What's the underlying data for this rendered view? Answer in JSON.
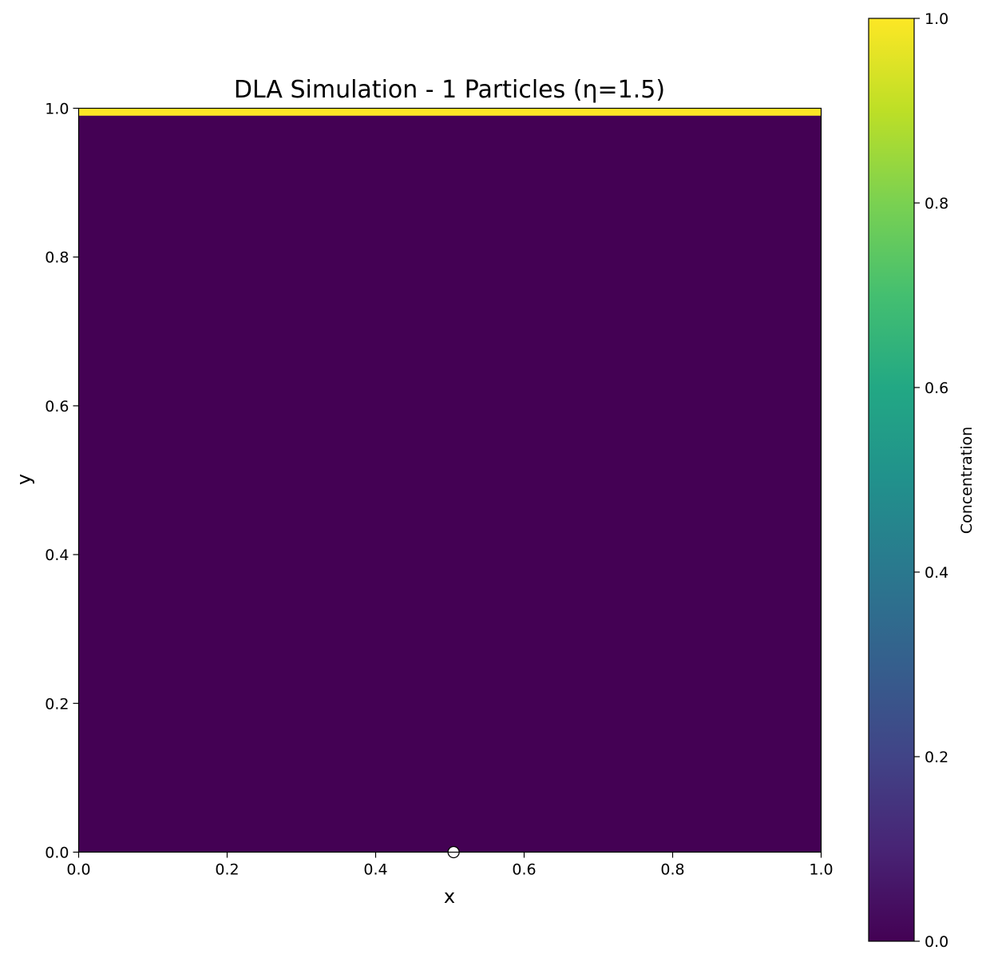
{
  "chart_data": {
    "type": "heatmap",
    "title": "DLA Simulation - 1 Particles (η=1.5)",
    "xlabel": "x",
    "ylabel": "y",
    "xlim": [
      0.0,
      1.0
    ],
    "ylim": [
      0.0,
      1.0
    ],
    "xticks": [
      "0.0",
      "0.2",
      "0.4",
      "0.6",
      "0.8",
      "1.0"
    ],
    "yticks": [
      "0.0",
      "0.2",
      "0.4",
      "0.6",
      "0.8",
      "1.0"
    ],
    "grid": false,
    "field": {
      "background_value": 0.0,
      "boundary": {
        "value": 1.0,
        "y_from": 0.99,
        "y_to": 1.0
      }
    },
    "particles": [
      {
        "x": 0.505,
        "y": 0.0,
        "color": "#ffffff"
      }
    ],
    "colorbar": {
      "label": "Concentration",
      "range": [
        0.0,
        1.0
      ],
      "ticks": [
        "0.0",
        "0.2",
        "0.4",
        "0.6",
        "0.8",
        "1.0"
      ],
      "colormap": "viridis",
      "stops": [
        {
          "v": 0.0,
          "color": "#440154"
        },
        {
          "v": 0.1,
          "color": "#482475"
        },
        {
          "v": 0.2,
          "color": "#414487"
        },
        {
          "v": 0.3,
          "color": "#355f8d"
        },
        {
          "v": 0.4,
          "color": "#2a788e"
        },
        {
          "v": 0.5,
          "color": "#21918c"
        },
        {
          "v": 0.6,
          "color": "#22a884"
        },
        {
          "v": 0.7,
          "color": "#44bf70"
        },
        {
          "v": 0.8,
          "color": "#7ad151"
        },
        {
          "v": 0.9,
          "color": "#bddf26"
        },
        {
          "v": 1.0,
          "color": "#fde725"
        }
      ]
    }
  }
}
